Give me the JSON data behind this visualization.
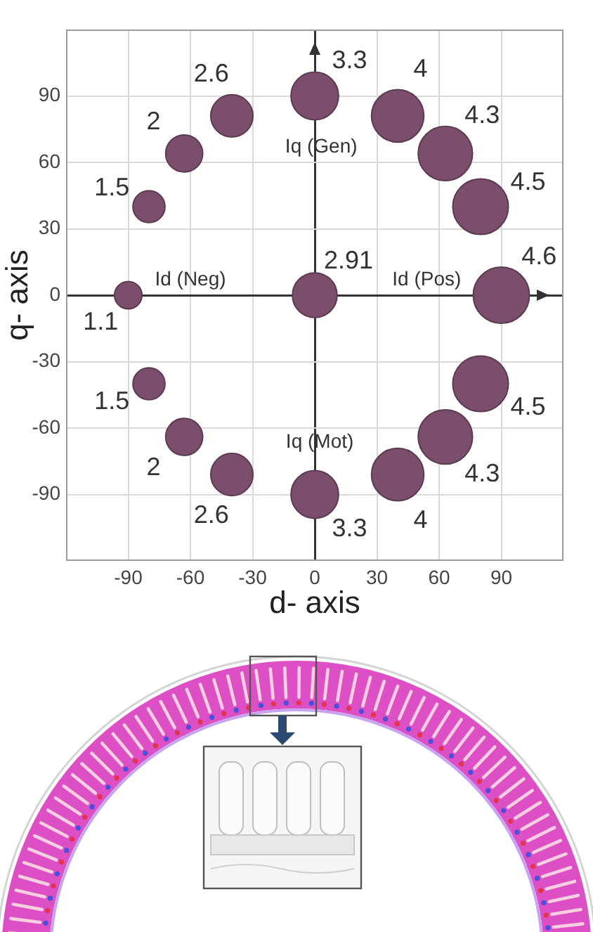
{
  "chart_data": {
    "type": "bubble",
    "xlabel": "d- axis",
    "ylabel": "q- axis",
    "x": [
      -90,
      -80,
      -63,
      -40,
      0,
      40,
      63,
      80,
      90,
      0,
      -80,
      -63,
      -40,
      0,
      40,
      63,
      80
    ],
    "values": [
      0,
      40,
      64,
      81,
      90,
      81,
      64,
      40,
      0,
      0,
      -40,
      -64,
      -81,
      -90,
      -81,
      -64,
      -40
    ],
    "sizes": [
      1.1,
      1.5,
      2,
      2.6,
      3.3,
      4,
      4.3,
      4.5,
      4.6,
      2.91,
      1.5,
      2,
      2.6,
      3.3,
      4,
      4.3,
      4.5
    ],
    "value_labels": [
      "1.1",
      "1.5",
      "2",
      "2.6",
      "3.3",
      "4",
      "4.3",
      "4.5",
      "4.6",
      "2.91",
      "1.5",
      "2",
      "2.6",
      "3.3",
      "4",
      "4.3",
      "4.5"
    ],
    "color": "#7b4f6b",
    "xlim": [
      -120,
      120
    ],
    "xticks": [
      -90,
      -60,
      -30,
      0,
      30,
      60,
      90
    ],
    "ylim": [
      -120,
      120
    ],
    "yticks": [
      -90,
      -60,
      -30,
      0,
      30,
      60,
      90
    ],
    "grid": true,
    "annotations": [
      "Id (Neg)",
      "Id (Pos)",
      "Iq (Gen)",
      "Iq (Mot)"
    ]
  }
}
